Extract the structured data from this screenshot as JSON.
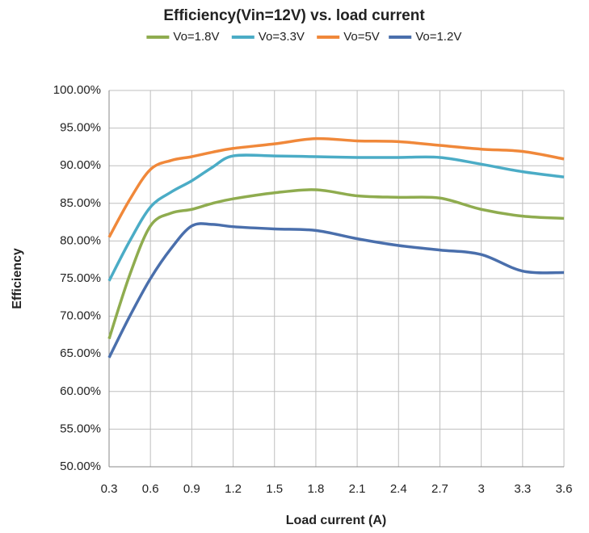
{
  "chart_data": {
    "type": "line",
    "title": "Efficiency(Vin=12V) vs. load current",
    "x_label": "Load current (A)",
    "y_label": "Efficiency",
    "x": [
      0.3,
      0.45,
      0.6,
      0.75,
      0.9,
      1.05,
      1.2,
      1.5,
      1.8,
      2.1,
      2.4,
      2.7,
      3.0,
      3.3,
      3.6
    ],
    "series": [
      {
        "name": "Vo=1.8V",
        "color": "#8fac4f",
        "values": [
          67,
          75.5,
          82,
          83.7,
          84.2,
          85,
          85.6,
          86.4,
          86.8,
          86,
          85.8,
          85.7,
          84.2,
          83.3,
          83
        ]
      },
      {
        "name": "Vo=3.3V",
        "color": "#4bacc6",
        "values": [
          74.7,
          80,
          84.5,
          86.5,
          88,
          89.8,
          91.3,
          91.3,
          91.2,
          91.1,
          91.1,
          91.1,
          90.2,
          89.2,
          88.5
        ]
      },
      {
        "name": "Vo=5V",
        "color": "#f0883a",
        "values": [
          80.5,
          85.5,
          89.5,
          90.7,
          91.2,
          91.8,
          92.3,
          92.9,
          93.6,
          93.3,
          93.2,
          92.7,
          92.2,
          91.9,
          90.9
        ]
      },
      {
        "name": "Vo=1.2V",
        "color": "#4a6fac",
        "values": [
          64.5,
          70,
          75,
          79,
          82,
          82.2,
          81.9,
          81.6,
          81.4,
          80.3,
          79.4,
          78.8,
          78.2,
          76,
          75.8
        ]
      }
    ],
    "xlim": [
      0.3,
      3.6
    ],
    "xticks": [
      0.3,
      0.6,
      0.9,
      1.2,
      1.5,
      1.8,
      2.1,
      2.4,
      2.7,
      3,
      3.3,
      3.6
    ],
    "ylim": [
      50,
      100
    ],
    "yticks": [
      {
        "value": 50,
        "label": "50.00%"
      },
      {
        "value": 55,
        "label": "55.00%"
      },
      {
        "value": 60,
        "label": "60.00%"
      },
      {
        "value": 65,
        "label": "65.00%"
      },
      {
        "value": 70,
        "label": "70.00%"
      },
      {
        "value": 75,
        "label": "75.00%"
      },
      {
        "value": 80,
        "label": "80.00%"
      },
      {
        "value": 85,
        "label": "85.00%"
      },
      {
        "value": 90,
        "label": "90.00%"
      },
      {
        "value": 95,
        "label": "95.00%"
      },
      {
        "value": 100,
        "label": "100.00%"
      }
    ],
    "grid": true,
    "legend": "top"
  }
}
